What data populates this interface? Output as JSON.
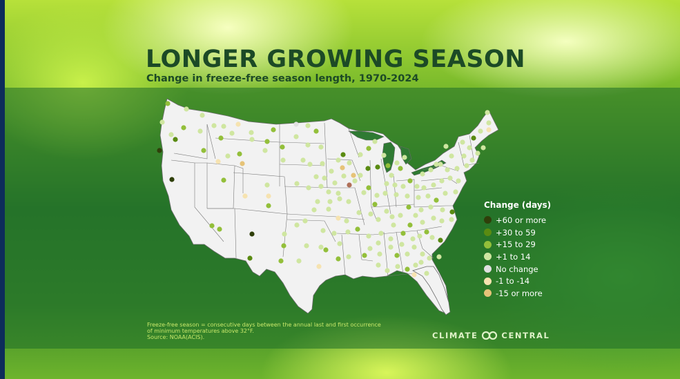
{
  "title": "LONGER GROWING SEASON",
  "subtitle": "Change in freeze-free season length, 1970-2024",
  "legend": {
    "title": "Change (days)",
    "items": [
      {
        "label": "+60 or more",
        "color": "#2f3f0a"
      },
      {
        "label": "+30 to 59",
        "color": "#5a8b12"
      },
      {
        "label": "+15 to 29",
        "color": "#93bf3a"
      },
      {
        "label": "+1 to 14",
        "color": "#cfe6a0"
      },
      {
        "label": "No change",
        "color": "#e0e0e0"
      },
      {
        "label": "-1 to -14",
        "color": "#f6e3b0"
      },
      {
        "label": "-15 or more",
        "color": "#e6c378"
      }
    ]
  },
  "footnote": {
    "line1": "Freeze-free season = consecutive days between the annual last and first occurrence",
    "line2": "of minimum temperatures above 32°F.",
    "source": "Source: NOAA(ACIS)."
  },
  "brand": {
    "left": "CLIMATE",
    "right": "CENTRAL",
    "icon": "infinity-loops-icon"
  },
  "colors": {
    "title": "#1c4a26",
    "band": "#2a7a30",
    "map_fill": "#f2f2f2",
    "state_border": "#6a6a6a",
    "outlier": "#b07058"
  },
  "map_data": {
    "region": "Contiguous United States",
    "stations_by_category": {
      "+60 or more": 8,
      "+30 to 59": 30,
      "+15 to 29": 60,
      "+1 to 14": 150,
      "No change": 2,
      "-1 to -14": 25,
      "-15 or more": 6
    }
  }
}
